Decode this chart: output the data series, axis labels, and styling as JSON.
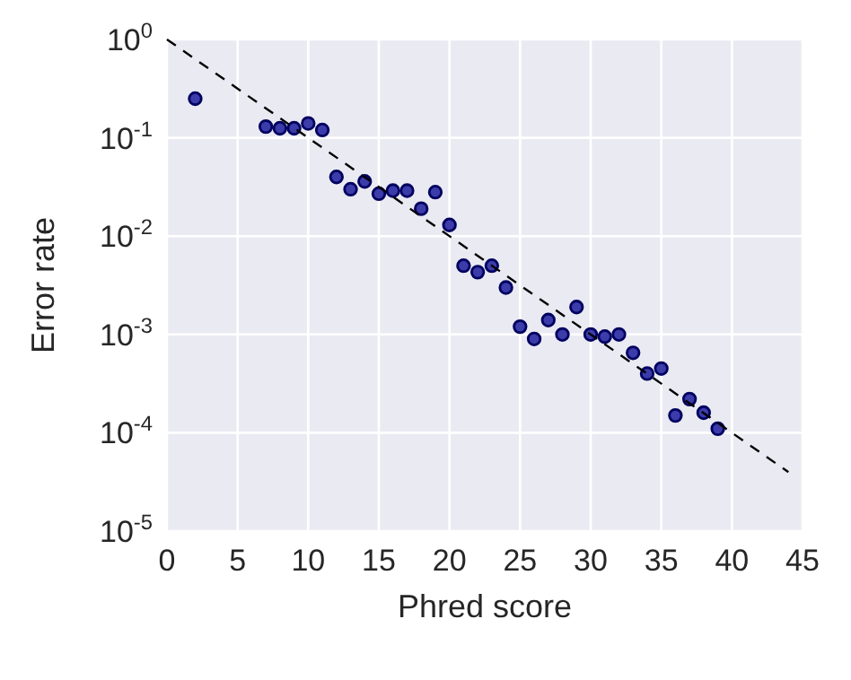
{
  "chart_data": {
    "type": "scatter",
    "xlabel": "Phred score",
    "ylabel": "Error rate",
    "log": "y",
    "grid": true,
    "marker": "circle",
    "xlim": [
      0,
      45
    ],
    "ylim": [
      1e-05,
      1
    ],
    "xticks": [
      0,
      5,
      10,
      15,
      20,
      25,
      30,
      35,
      40,
      45
    ],
    "yticks": [
      {
        "value": 1e-05,
        "label": "10$^{-5}$"
      },
      {
        "value": 0.0001,
        "label": "10$^{-4}$"
      },
      {
        "value": 0.001,
        "label": "10$^{-3}$"
      },
      {
        "value": 0.01,
        "label": "10$^{-2}$"
      },
      {
        "value": 0.1,
        "label": "10$^{-1}$"
      },
      {
        "value": 1,
        "label": "10$^{0}$"
      }
    ],
    "series": [
      {
        "color": "#1c1c9c",
        "x": [
          2,
          7,
          8,
          9,
          10,
          11,
          12,
          13,
          14,
          15,
          16,
          17,
          18,
          19,
          20,
          21,
          22,
          23,
          24,
          25,
          26,
          27,
          28,
          29,
          30,
          31,
          32,
          33,
          34,
          35,
          36,
          37,
          38,
          39
        ],
        "values": [
          0.25,
          0.13,
          0.125,
          0.125,
          0.14,
          0.12,
          0.04,
          0.03,
          0.036,
          0.027,
          0.029,
          0.029,
          0.019,
          0.028,
          0.013,
          0.005,
          0.0043,
          0.005,
          0.003,
          0.0012,
          0.0009,
          0.0014,
          0.001,
          0.0019,
          0.001,
          0.00095,
          0.001,
          0.00065,
          0.0004,
          0.00045,
          0.00015,
          0.00022,
          0.00016,
          0.00011
        ]
      },
      {
        "type": "line",
        "color": "#000000",
        "line_style": "dashed",
        "marker": "none",
        "x": [
          0,
          44
        ],
        "values": [
          1,
          3.981e-05
        ]
      }
    ]
  }
}
